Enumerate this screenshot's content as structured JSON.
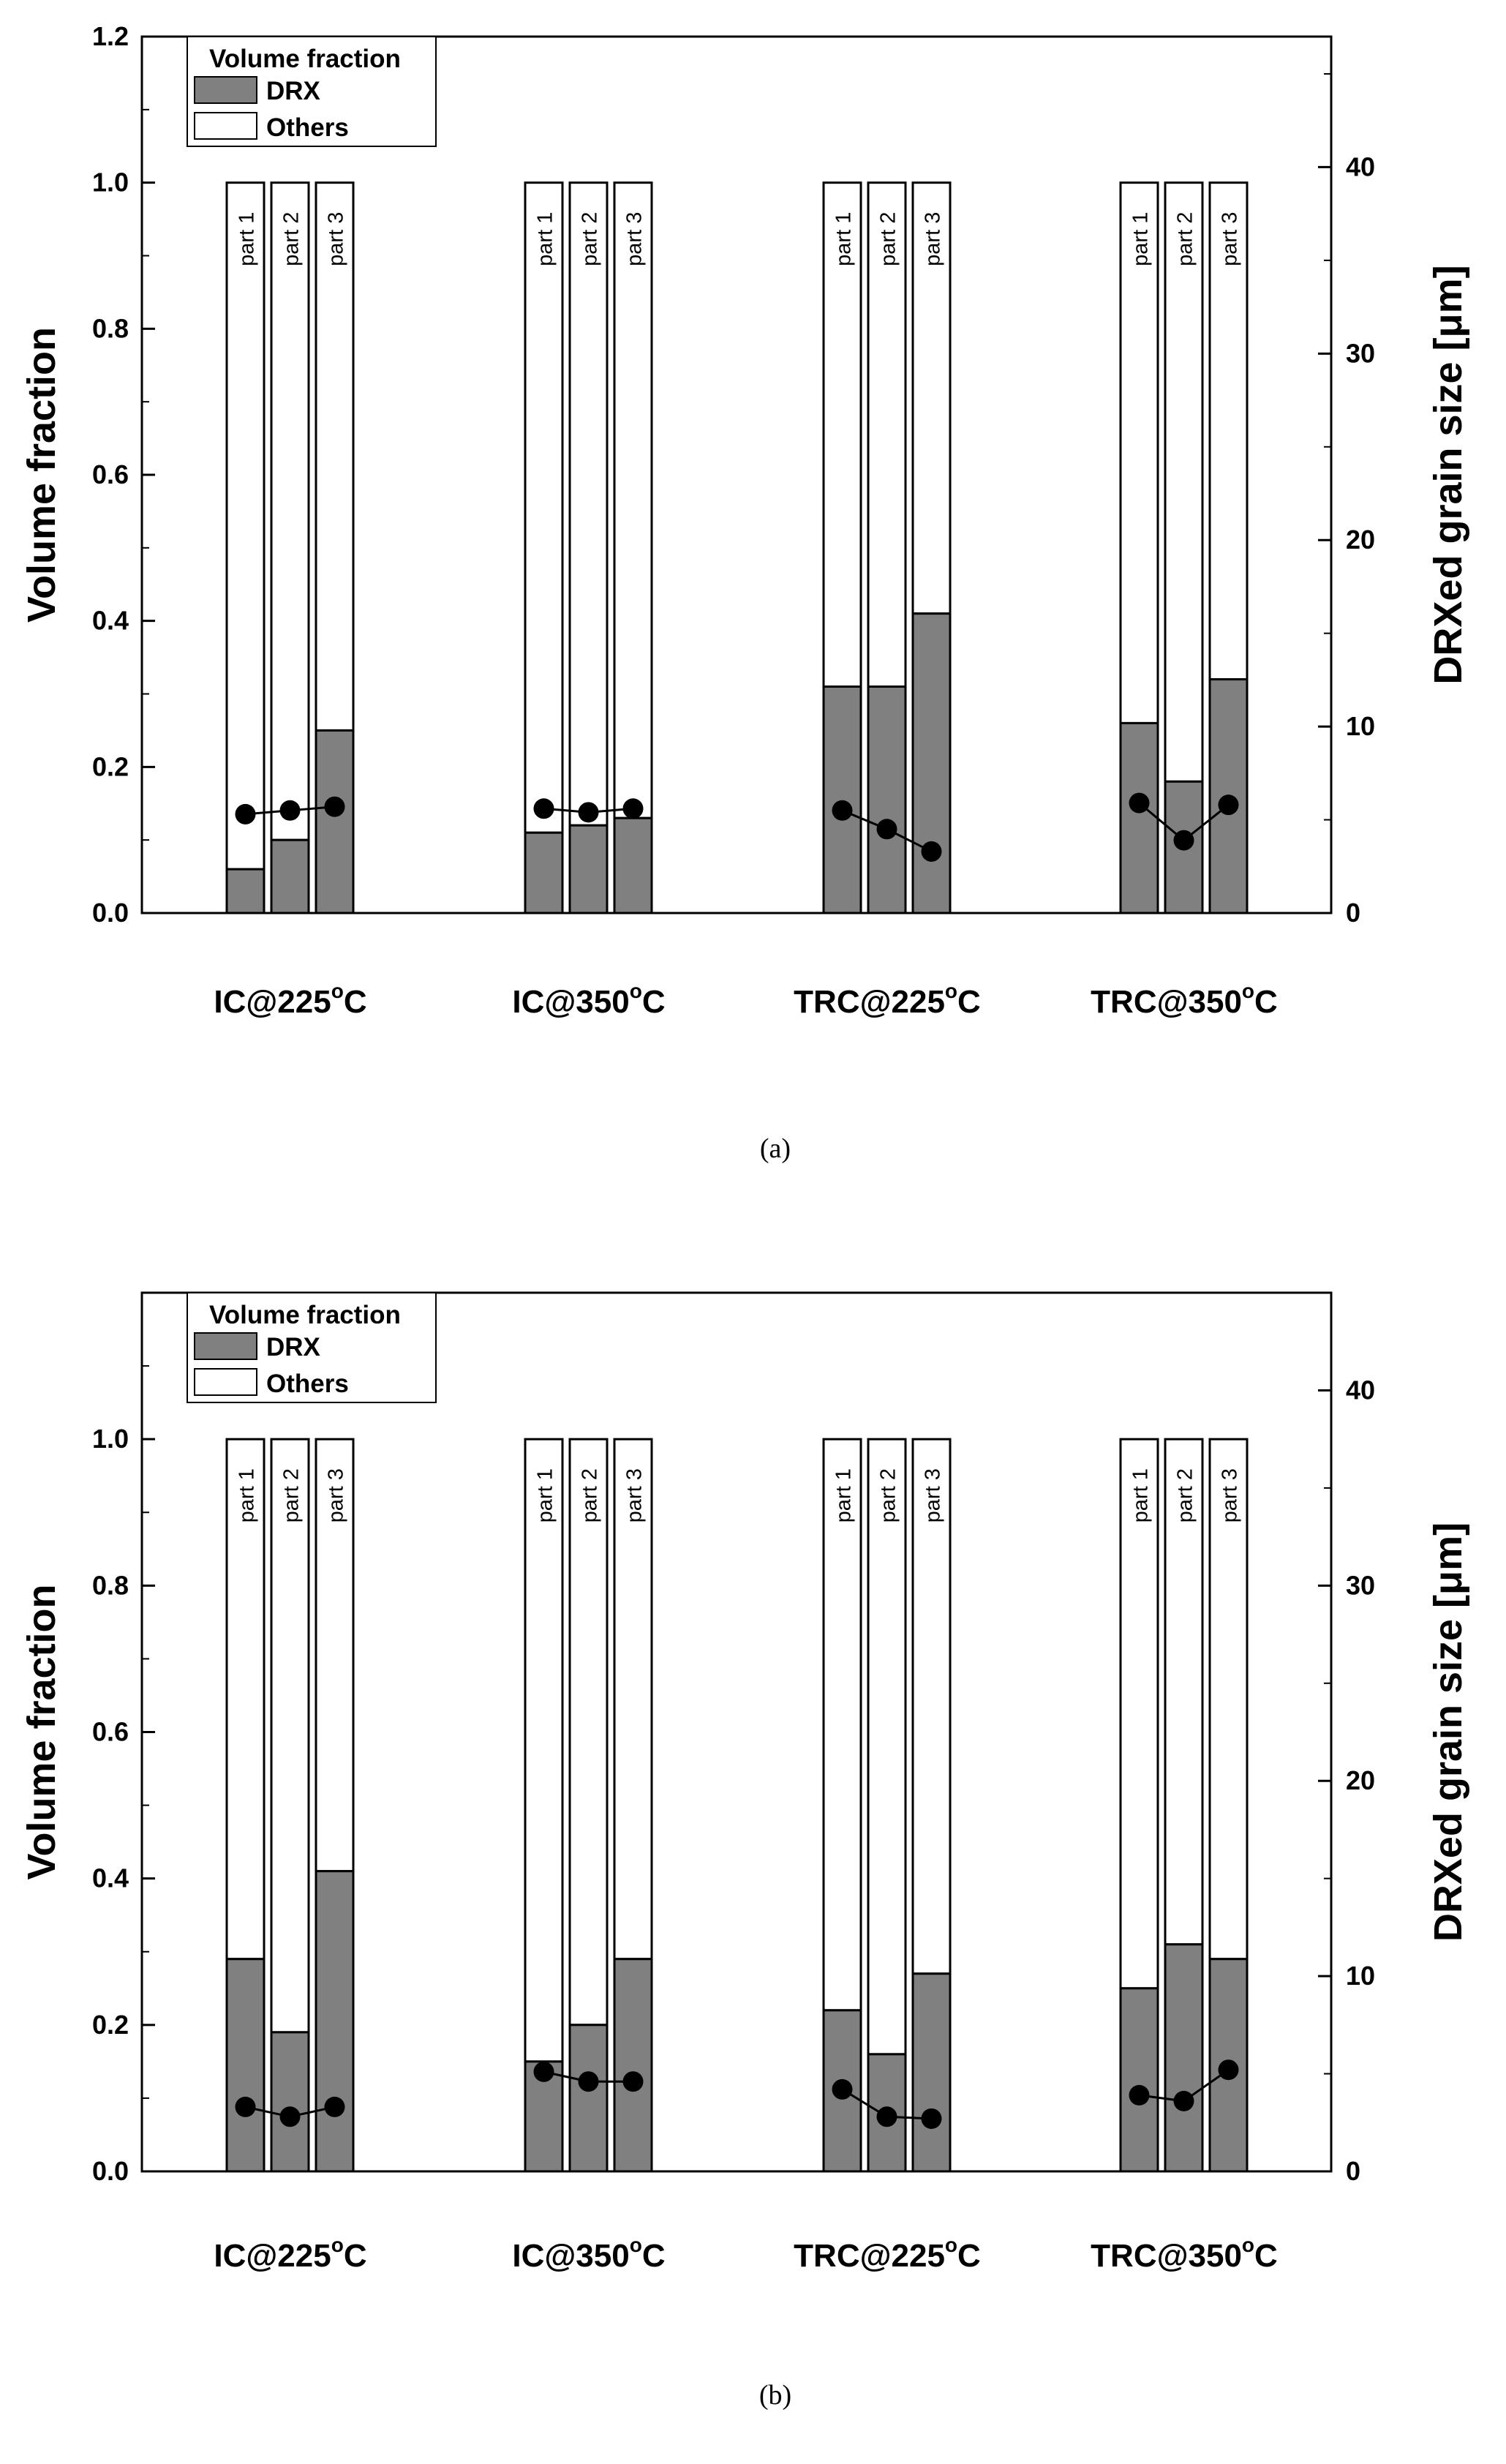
{
  "chart_data": [
    {
      "type": "bar",
      "panel": "(a)",
      "categories": [
        "IC@225°C",
        "IC@350°C",
        "TRC@225°C",
        "TRC@350°C"
      ],
      "parts": [
        "part 1",
        "part 2",
        "part 3"
      ],
      "series": [
        {
          "name": "DRX",
          "values": [
            [
              0.06,
              0.1,
              0.25
            ],
            [
              0.11,
              0.12,
              0.13
            ],
            [
              0.31,
              0.31,
              0.41
            ],
            [
              0.26,
              0.18,
              0.32
            ]
          ]
        },
        {
          "name": "Others",
          "values": [
            [
              0.94,
              0.9,
              0.75
            ],
            [
              0.89,
              0.88,
              0.87
            ],
            [
              0.69,
              0.69,
              0.59
            ],
            [
              0.74,
              0.82,
              0.68
            ]
          ]
        }
      ],
      "grain_size": [
        [
          5.3,
          5.5,
          5.7
        ],
        [
          5.6,
          5.4,
          5.6
        ],
        [
          5.5,
          4.5,
          3.3
        ],
        [
          5.9,
          3.9,
          5.8
        ]
      ],
      "ylabel": "Volume fraction",
      "y2label": "DRXed grain size [μm]",
      "ylim": [
        0,
        1.2
      ],
      "y2lim": [
        0,
        47
      ],
      "yticks": [
        "0.0",
        "0.2",
        "0.4",
        "0.6",
        "0.8",
        "1.0",
        "1.2"
      ],
      "y2ticks": [
        "0",
        "10",
        "20",
        "30",
        "40"
      ],
      "legend": {
        "title": "Volume fraction",
        "entries": [
          "DRX",
          "Others"
        ],
        "placement": "top-left"
      }
    },
    {
      "type": "bar",
      "panel": "(b)",
      "categories": [
        "IC@225°C",
        "IC@350°C",
        "TRC@225°C",
        "TRC@350°C"
      ],
      "parts": [
        "part 1",
        "part 2",
        "part 3"
      ],
      "series": [
        {
          "name": "DRX",
          "values": [
            [
              0.29,
              0.19,
              0.41
            ],
            [
              0.15,
              0.2,
              0.29
            ],
            [
              0.22,
              0.16,
              0.27
            ],
            [
              0.25,
              0.31,
              0.29
            ]
          ]
        },
        {
          "name": "Others",
          "values": [
            [
              0.71,
              0.81,
              0.59
            ],
            [
              0.85,
              0.8,
              0.71
            ],
            [
              0.78,
              0.84,
              0.73
            ],
            [
              0.75,
              0.69,
              0.71
            ]
          ]
        }
      ],
      "grain_size": [
        [
          3.3,
          2.8,
          3.3
        ],
        [
          5.1,
          4.6,
          4.6
        ],
        [
          4.2,
          2.8,
          2.7
        ],
        [
          3.9,
          3.6,
          5.2
        ]
      ],
      "ylabel": "Volume fraction",
      "y2label": "DRXed grain size [μm]",
      "ylim": [
        0,
        1.2
      ],
      "y2lim": [
        0,
        45
      ],
      "yticks": [
        "0.0",
        "0.2",
        "0.4",
        "0.6",
        "0.8",
        "1.0"
      ],
      "y2ticks": [
        "0",
        "10",
        "20",
        "30",
        "40"
      ],
      "legend": {
        "title": "Volume fraction",
        "entries": [
          "DRX",
          "Others"
        ],
        "placement": "top-left"
      }
    }
  ],
  "colors": {
    "drx": "#808080",
    "others": "#ffffff",
    "line": "#000000"
  }
}
